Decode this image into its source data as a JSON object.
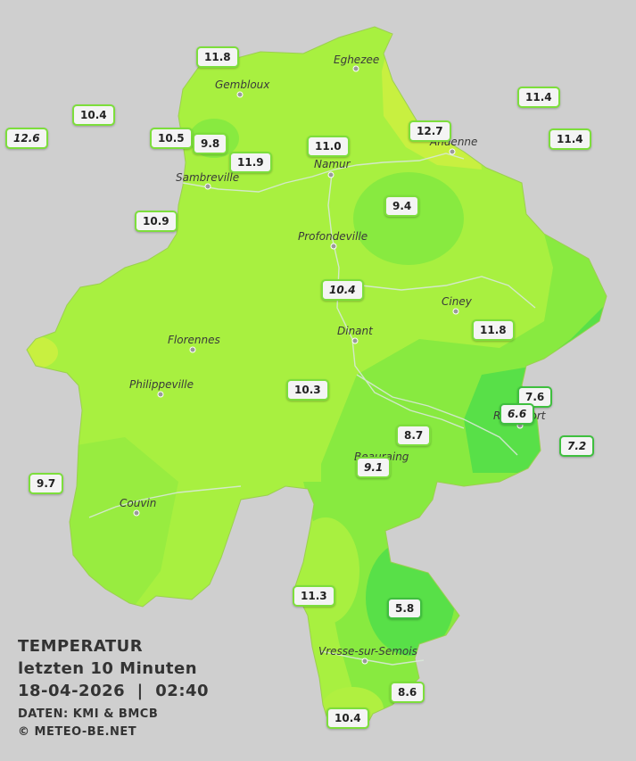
{
  "title": {
    "line1": "TEMPERATUR",
    "line2": "letzten 10 Minuten",
    "line3": "18-04-2026  |  02:40",
    "source": "DATEN: KMI & BMCB",
    "copyright": "© METEO-BE.NET"
  },
  "colors": {
    "background": "#cfcfcf",
    "base": "#a8f040",
    "warm": "#c8f040",
    "cool": "#88ea40",
    "cold": "#58e048"
  },
  "cities": [
    "Eghezee",
    "Gembloux",
    "Andenne",
    "Sambreville",
    "Namur",
    "Profondeville",
    "Ciney",
    "Florennes",
    "Dinant",
    "Philippeville",
    "Rochefort",
    "Beauraing",
    "Couvin",
    "Vresse-sur-Semois"
  ],
  "stations": [
    {
      "value": "11.8"
    },
    {
      "value": "10.4"
    },
    {
      "value": "12.6"
    },
    {
      "value": "10.5"
    },
    {
      "value": "9.8"
    },
    {
      "value": "11.9"
    },
    {
      "value": "11.0"
    },
    {
      "value": "12.7"
    },
    {
      "value": "11.4"
    },
    {
      "value": "11.4"
    },
    {
      "value": "9.4"
    },
    {
      "value": "10.9"
    },
    {
      "value": "10.4"
    },
    {
      "value": "11.8"
    },
    {
      "value": "7.6"
    },
    {
      "value": "6.6"
    },
    {
      "value": "10.3"
    },
    {
      "value": "8.7"
    },
    {
      "value": "7.2"
    },
    {
      "value": "9.1"
    },
    {
      "value": "9.7"
    },
    {
      "value": "11.3"
    },
    {
      "value": "5.8"
    },
    {
      "value": "8.6"
    },
    {
      "value": "10.4"
    }
  ]
}
